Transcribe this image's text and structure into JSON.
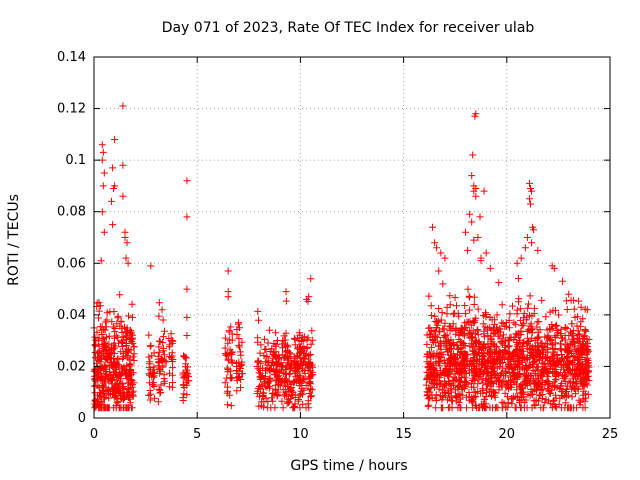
{
  "chart_data": {
    "type": "scatter",
    "title": "Day 071 of 2023, Rate Of TEC Index for receiver ulab",
    "xlabel": "GPS time / hours",
    "ylabel": "ROTI / TECUs",
    "xlim": [
      0,
      25
    ],
    "ylim": [
      0,
      0.14
    ],
    "xticks": [
      "0",
      "5",
      "10",
      "15",
      "20",
      "25"
    ],
    "yticks": [
      "0",
      "0.02",
      "0.04",
      "0.06",
      "0.08",
      "0.1",
      "0.12",
      "0.14"
    ],
    "grid": true,
    "marker": "plus",
    "color": "#ff0000",
    "segments": [
      {
        "start": 0.0,
        "end": 1.95,
        "base": 0.018,
        "spread": 0.014,
        "n": 420
      },
      {
        "start": 2.65,
        "end": 2.95,
        "base": 0.016,
        "spread": 0.008,
        "n": 30
      },
      {
        "start": 3.1,
        "end": 3.5,
        "base": 0.02,
        "spread": 0.01,
        "n": 40
      },
      {
        "start": 3.6,
        "end": 3.85,
        "base": 0.022,
        "spread": 0.008,
        "n": 20
      },
      {
        "start": 4.3,
        "end": 4.6,
        "base": 0.015,
        "spread": 0.006,
        "n": 30
      },
      {
        "start": 6.35,
        "end": 6.7,
        "base": 0.02,
        "spread": 0.01,
        "n": 40
      },
      {
        "start": 6.9,
        "end": 7.2,
        "base": 0.018,
        "spread": 0.01,
        "n": 30
      },
      {
        "start": 7.9,
        "end": 10.6,
        "base": 0.017,
        "spread": 0.01,
        "n": 360
      },
      {
        "start": 16.1,
        "end": 24.0,
        "base": 0.02,
        "spread": 0.013,
        "n": 1500
      }
    ],
    "outliers": [
      [
        0.4,
        0.106
      ],
      [
        0.45,
        0.103
      ],
      [
        0.4,
        0.1
      ],
      [
        0.5,
        0.095
      ],
      [
        0.45,
        0.09
      ],
      [
        0.4,
        0.08
      ],
      [
        0.5,
        0.072
      ],
      [
        0.35,
        0.061
      ],
      [
        1.0,
        0.108
      ],
      [
        0.9,
        0.097
      ],
      [
        1.0,
        0.09
      ],
      [
        0.95,
        0.089
      ],
      [
        0.85,
        0.084
      ],
      [
        0.9,
        0.075
      ],
      [
        1.4,
        0.121
      ],
      [
        1.4,
        0.098
      ],
      [
        1.4,
        0.086
      ],
      [
        1.5,
        0.072
      ],
      [
        1.5,
        0.07
      ],
      [
        1.6,
        0.068
      ],
      [
        1.55,
        0.062
      ],
      [
        1.65,
        0.06
      ],
      [
        2.75,
        0.059
      ],
      [
        3.3,
        0.042
      ],
      [
        3.35,
        0.038
      ],
      [
        3.8,
        0.03
      ],
      [
        4.5,
        0.092
      ],
      [
        4.5,
        0.078
      ],
      [
        4.5,
        0.05
      ],
      [
        4.5,
        0.039
      ],
      [
        4.5,
        0.032
      ],
      [
        6.5,
        0.057
      ],
      [
        6.5,
        0.049
      ],
      [
        6.5,
        0.047
      ],
      [
        7.0,
        0.037
      ],
      [
        7.05,
        0.035
      ],
      [
        9.3,
        0.049
      ],
      [
        10.5,
        0.054
      ],
      [
        10.4,
        0.047
      ],
      [
        10.3,
        0.046
      ],
      [
        16.4,
        0.074
      ],
      [
        16.5,
        0.068
      ],
      [
        16.6,
        0.066
      ],
      [
        16.8,
        0.064
      ],
      [
        16.7,
        0.057
      ],
      [
        17.0,
        0.062
      ],
      [
        16.9,
        0.052
      ],
      [
        18.2,
        0.079
      ],
      [
        18.0,
        0.072
      ],
      [
        18.3,
        0.076
      ],
      [
        18.4,
        0.069
      ],
      [
        18.6,
        0.07
      ],
      [
        18.1,
        0.065
      ],
      [
        18.5,
        0.118
      ],
      [
        18.45,
        0.117
      ],
      [
        18.35,
        0.102
      ],
      [
        18.3,
        0.094
      ],
      [
        18.4,
        0.09
      ],
      [
        18.5,
        0.089
      ],
      [
        18.4,
        0.088
      ],
      [
        18.5,
        0.086
      ],
      [
        18.9,
        0.088
      ],
      [
        18.7,
        0.078
      ],
      [
        19.0,
        0.064
      ],
      [
        18.75,
        0.062
      ],
      [
        19.2,
        0.058
      ],
      [
        20.5,
        0.06
      ],
      [
        20.7,
        0.062
      ],
      [
        20.9,
        0.066
      ],
      [
        21.0,
        0.07
      ],
      [
        21.1,
        0.091
      ],
      [
        21.15,
        0.089
      ],
      [
        21.2,
        0.088
      ],
      [
        21.1,
        0.085
      ],
      [
        21.15,
        0.083
      ],
      [
        21.25,
        0.074
      ],
      [
        21.3,
        0.073
      ],
      [
        21.2,
        0.068
      ],
      [
        21.5,
        0.065
      ],
      [
        22.2,
        0.059
      ],
      [
        22.3,
        0.058
      ],
      [
        22.7,
        0.053
      ],
      [
        23.0,
        0.048
      ],
      [
        23.9,
        0.042
      ]
    ]
  }
}
